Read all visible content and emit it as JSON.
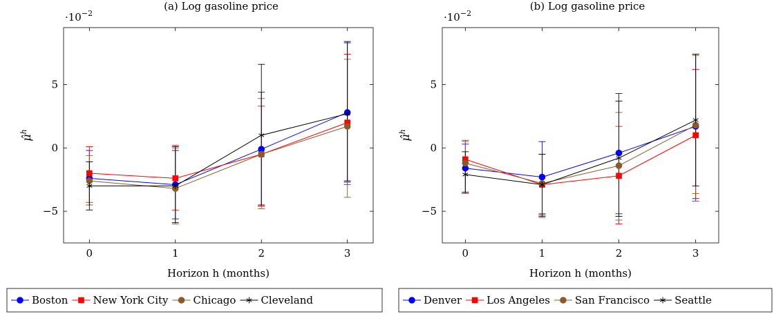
{
  "chart_data": [
    {
      "type": "line",
      "title": "(a) Log gasoline price",
      "scale_label": "·10",
      "scale_exp": "−2",
      "xlabel": "Horizon h (months)",
      "ylabel_main": "μ̂",
      "ylabel_sup": "h",
      "x": [
        0,
        1,
        2,
        3
      ],
      "xlim": [
        -0.3,
        3.3
      ],
      "ylim": [
        -7.5,
        9.5
      ],
      "x_ticks": [
        {
          "v": 0,
          "label": "0"
        },
        {
          "v": 1,
          "label": "1"
        },
        {
          "v": 2,
          "label": "2"
        },
        {
          "v": 3,
          "label": "3"
        }
      ],
      "y_ticks": [
        {
          "v": -5,
          "label": "−5"
        },
        {
          "v": 0,
          "label": "0"
        },
        {
          "v": 5,
          "label": "5"
        }
      ],
      "grid": false,
      "legend_position": "bottom",
      "series": [
        {
          "name": "Boston",
          "color": "#0000ff",
          "marker": "circle",
          "values": [
            -2.4,
            -2.9,
            -0.1,
            2.8
          ],
          "err_low": [
            -4.5,
            -5.6,
            -4.6,
            -2.7
          ],
          "err_high": [
            -0.2,
            -0.2,
            4.4,
            8.3
          ]
        },
        {
          "name": "New York City",
          "color": "#ff0000",
          "marker": "square",
          "values": [
            -2.0,
            -2.4,
            -0.5,
            2.0
          ],
          "err_low": [
            -4.3,
            -4.9,
            -4.6,
            -2.9
          ],
          "err_high": [
            0.1,
            0.2,
            3.3,
            7.4
          ]
        },
        {
          "name": "Chicago",
          "color": "#8b5a2b",
          "marker": "circle",
          "values": [
            -2.6,
            -3.2,
            -0.5,
            1.7
          ],
          "err_low": [
            -4.5,
            -6.0,
            -4.8,
            -3.9
          ],
          "err_high": [
            -0.6,
            0.0,
            3.9,
            7.0
          ]
        },
        {
          "name": "Cleveland",
          "color": "#000000",
          "marker": "star",
          "values": [
            -3.0,
            -3.0,
            1.0,
            2.7
          ],
          "err_low": [
            -4.9,
            -5.9,
            -4.5,
            -2.6
          ],
          "err_high": [
            -1.1,
            0.1,
            6.6,
            8.4
          ]
        }
      ]
    },
    {
      "type": "line",
      "title": "(b) Log gasoline price",
      "scale_label": "·10",
      "scale_exp": "−2",
      "xlabel": "Horizon h (months)",
      "ylabel_main": "μ̂",
      "ylabel_sup": "h",
      "x": [
        0,
        1,
        2,
        3
      ],
      "xlim": [
        -0.3,
        3.3
      ],
      "ylim": [
        -7.5,
        9.5
      ],
      "x_ticks": [
        {
          "v": 0,
          "label": "0"
        },
        {
          "v": 1,
          "label": "1"
        },
        {
          "v": 2,
          "label": "2"
        },
        {
          "v": 3,
          "label": "3"
        }
      ],
      "y_ticks": [
        {
          "v": -5,
          "label": "−5"
        },
        {
          "v": 0,
          "label": "0"
        },
        {
          "v": 5,
          "label": "5"
        }
      ],
      "grid": false,
      "legend_position": "bottom",
      "series": [
        {
          "name": "Denver",
          "color": "#0000ff",
          "marker": "circle",
          "values": [
            -1.6,
            -2.3,
            -0.4,
            1.7
          ],
          "err_low": [
            -3.6,
            -5.2,
            -5.2,
            -4.0
          ],
          "err_high": [
            0.3,
            0.5,
            4.3,
            7.4
          ]
        },
        {
          "name": "Los Angeles",
          "color": "#ff0000",
          "marker": "square",
          "values": [
            -0.9,
            -2.9,
            -2.2,
            1.0
          ],
          "err_low": [
            -3.5,
            -5.3,
            -6.0,
            -4.2
          ],
          "err_high": [
            0.6,
            -0.5,
            1.7,
            6.2
          ]
        },
        {
          "name": "San Francisco",
          "color": "#8b5a2b",
          "marker": "circle",
          "values": [
            -1.2,
            -2.8,
            -1.4,
            1.8
          ],
          "err_low": [
            -3.6,
            -5.5,
            -5.7,
            -3.6
          ],
          "err_high": [
            0.5,
            -0.5,
            2.8,
            7.3
          ]
        },
        {
          "name": "Seattle",
          "color": "#000000",
          "marker": "star",
          "values": [
            -2.1,
            -2.9,
            -0.8,
            2.2
          ],
          "err_low": [
            -3.5,
            -5.4,
            -5.4,
            -3.0
          ],
          "err_high": [
            -0.3,
            -0.5,
            3.7,
            7.4
          ]
        }
      ]
    }
  ]
}
